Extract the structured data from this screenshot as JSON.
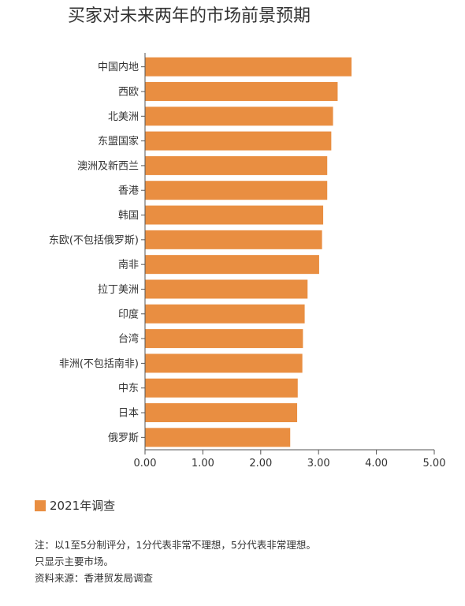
{
  "title": "买家对未来两年的市场前景预期",
  "chart_data": {
    "type": "bar",
    "orientation": "horizontal",
    "categories": [
      "中国内地",
      "西欧",
      "北美洲",
      "东盟国家",
      "澳洲及新西兰",
      "香港",
      "韩国",
      "东欧(不包括俄罗斯)",
      "南非",
      "拉丁美洲",
      "印度",
      "台湾",
      "非洲(不包括南非)",
      "中东",
      "日本",
      "俄罗斯"
    ],
    "series": [
      {
        "name": "2021年调查",
        "values": [
          3.57,
          3.33,
          3.25,
          3.22,
          3.15,
          3.15,
          3.08,
          3.06,
          3.01,
          2.81,
          2.76,
          2.73,
          2.72,
          2.64,
          2.63,
          2.51
        ],
        "color": "#e98e41"
      }
    ],
    "xlim": [
      0,
      5
    ],
    "xticks": [
      "0.00",
      "1.00",
      "2.00",
      "3.00",
      "4.00",
      "5.00"
    ],
    "grid": false,
    "legend_position": "bottom-left"
  },
  "legend": {
    "label": "2021年调查",
    "color": "#e98e41"
  },
  "notes": [
    "注：以1至5分制评分，1分代表非常不理想，5分代表非常理想。",
    "只显示主要市场。",
    "资料来源：香港贸发局调查"
  ]
}
